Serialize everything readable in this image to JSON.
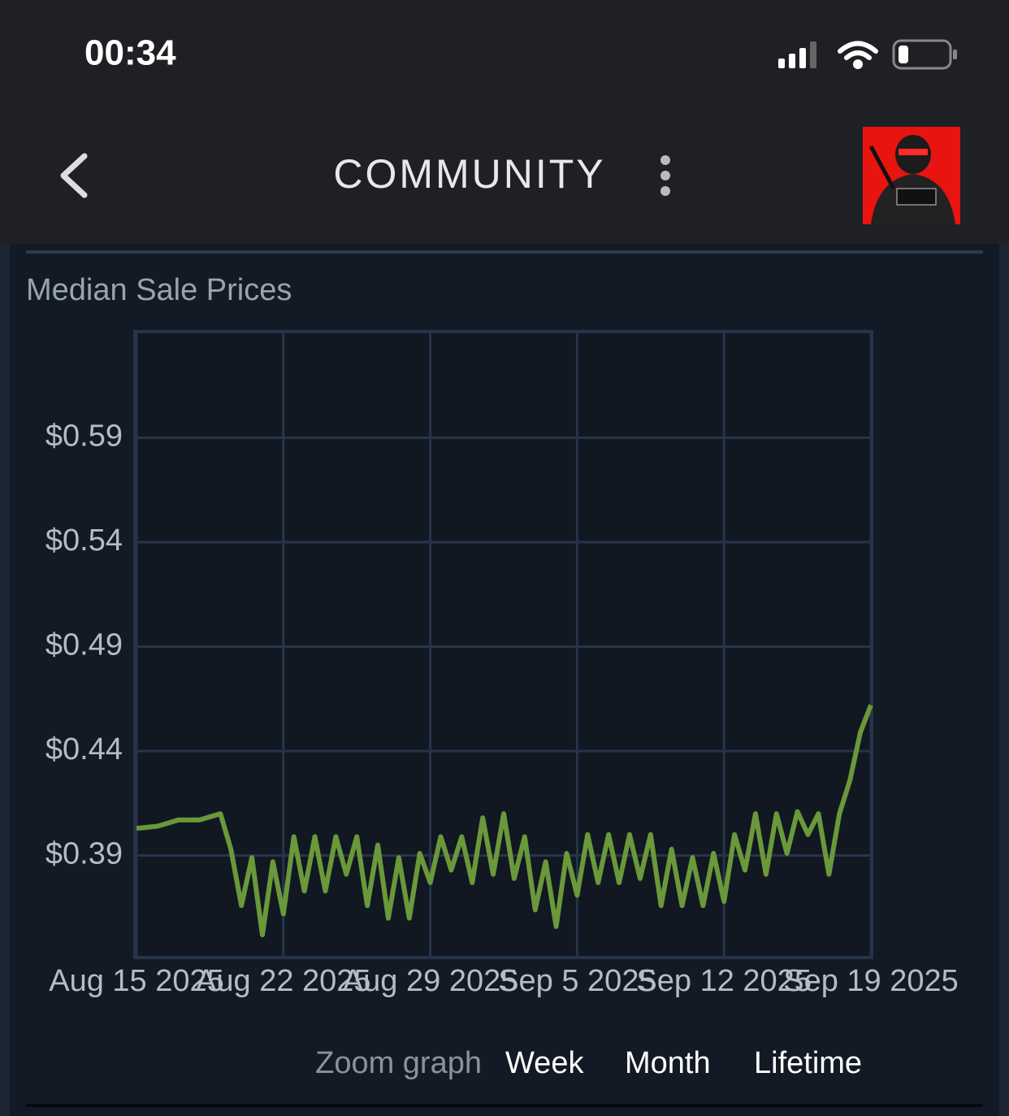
{
  "status_bar": {
    "time": "00:34"
  },
  "nav": {
    "title": "COMMUNITY"
  },
  "zoom": {
    "label": "Zoom graph",
    "options": [
      "Week",
      "Month",
      "Lifetime"
    ]
  },
  "chart_data": {
    "type": "line",
    "title": "Median Sale Prices",
    "x": [
      0,
      1,
      2,
      3,
      4,
      4.5,
      5,
      5.5,
      6,
      6.5,
      7,
      7.5,
      8,
      8.5,
      9,
      9.5,
      10,
      10.5,
      11,
      11.5,
      12,
      12.5,
      13,
      13.5,
      14,
      14.5,
      15,
      15.5,
      16,
      16.5,
      17,
      17.5,
      18,
      18.5,
      19,
      19.5,
      20,
      20.5,
      21,
      21.5,
      22,
      22.5,
      23,
      23.5,
      24,
      24.5,
      25,
      25.5,
      26,
      26.5,
      27,
      27.5,
      28,
      28.5,
      29,
      29.5,
      30,
      30.5,
      31,
      31.5,
      32,
      32.5,
      33,
      33.5,
      34,
      34.5,
      35
    ],
    "series": [
      {
        "color": "#6a983a",
        "values": [
          0.403,
          0.404,
          0.407,
          0.407,
          0.41,
          0.393,
          0.366,
          0.389,
          0.352,
          0.387,
          0.362,
          0.399,
          0.373,
          0.399,
          0.373,
          0.399,
          0.381,
          0.399,
          0.366,
          0.395,
          0.36,
          0.389,
          0.36,
          0.391,
          0.377,
          0.399,
          0.383,
          0.399,
          0.377,
          0.408,
          0.381,
          0.41,
          0.379,
          0.399,
          0.364,
          0.387,
          0.356,
          0.391,
          0.371,
          0.4,
          0.377,
          0.4,
          0.377,
          0.4,
          0.379,
          0.4,
          0.366,
          0.393,
          0.366,
          0.389,
          0.366,
          0.391,
          0.368,
          0.4,
          0.383,
          0.41,
          0.381,
          0.41,
          0.391,
          0.411,
          0.4,
          0.41,
          0.381,
          0.41,
          0.426,
          0.449,
          0.462
        ]
      }
    ],
    "xlim": [
      0,
      35
    ],
    "xticks": [
      {
        "value": 0,
        "label": "Aug 15 2025"
      },
      {
        "value": 7,
        "label": "Aug 22 2025"
      },
      {
        "value": 14,
        "label": "Aug 29 2025"
      },
      {
        "value": 21,
        "label": "Sep 5 2025"
      },
      {
        "value": 28,
        "label": "Sep 12 2025"
      },
      {
        "value": 35,
        "label": "Sep 19 2025"
      }
    ],
    "ylim": [
      0.34,
      0.64
    ],
    "yticks": [
      {
        "value": 0.39,
        "label": "$0.39"
      },
      {
        "value": 0.44,
        "label": "$0.44"
      },
      {
        "value": 0.49,
        "label": "$0.49"
      },
      {
        "value": 0.54,
        "label": "$0.54"
      },
      {
        "value": 0.59,
        "label": "$0.59"
      }
    ],
    "grid": true
  }
}
